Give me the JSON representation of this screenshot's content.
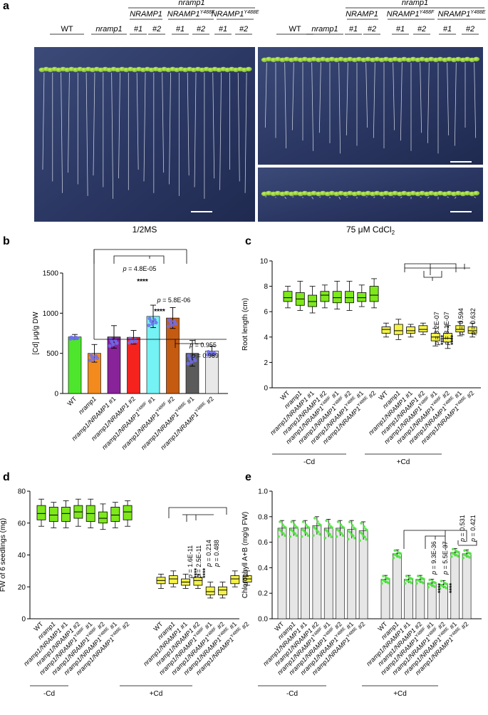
{
  "panels": {
    "a": {
      "letter": "a",
      "left_photo": {
        "header_group": "nramp1",
        "header_constructs": [
          "NRAMP1",
          "NRAMP1",
          "NRAMP1"
        ],
        "header_superscripts": [
          "",
          "Y488F",
          "Y488E"
        ],
        "genotypes": [
          "WT",
          "nramp1"
        ],
        "line_nums": [
          "#1",
          "#2",
          "#1",
          "#2",
          "#1",
          "#2"
        ],
        "condition": "1/2MS"
      },
      "right_photo": {
        "header_group": "nramp1",
        "header_constructs": [
          "NRAMP1",
          "NRAMP1",
          "NRAMP1"
        ],
        "header_superscripts": [
          "",
          "Y488F",
          "Y488E"
        ],
        "genotypes": [
          "WT",
          "nramp1"
        ],
        "line_nums": [
          "#1",
          "#2",
          "#1",
          "#2",
          "#1",
          "#2"
        ],
        "condition_prefix": "75 μM CdCl",
        "condition_sub": "2"
      }
    },
    "b": {
      "letter": "b"
    },
    "c": {
      "letter": "c",
      "group_labels": [
        "-Cd",
        "+Cd"
      ]
    },
    "d": {
      "letter": "d",
      "group_labels": [
        "-Cd",
        "+Cd"
      ]
    },
    "e": {
      "letter": "e",
      "group_labels": [
        "-Cd",
        "+Cd"
      ]
    }
  },
  "colors": {
    "wt": "#4ee62c",
    "nramp1": "#f28a1e",
    "c1": "#882399",
    "c2": "#f4231e",
    "y488f1": "#74f2f4",
    "y488f2": "#c55a11",
    "y488e1": "#5b5b5b",
    "y488e2": "#e8e8e8",
    "box_minus": "#7ee81c",
    "box_plus": "#f4f248",
    "bar_e": "#e6e6e6",
    "dots": "#6e6ef0",
    "dots_e": "#4de63c"
  },
  "chart_data": [
    {
      "panel": "b",
      "type": "bar",
      "ylabel": "[Cd] μg/g DW",
      "ylim": [
        0,
        1500
      ],
      "yticks": [
        0,
        500,
        1000,
        1500
      ],
      "categories": [
        {
          "base": "WT",
          "sup": "",
          "tail": ""
        },
        {
          "base": "nramp1",
          "sup": "",
          "tail": ""
        },
        {
          "base": "nramp1/NRAMP1 #1",
          "sup": "",
          "tail": ""
        },
        {
          "base": "nramp1/NRAMP1 #2",
          "sup": "",
          "tail": ""
        },
        {
          "base": "nramp1/NRAMP1",
          "sup": "Y488F",
          "tail": " #1"
        },
        {
          "base": "nramp1/NRAMP1",
          "sup": "Y488F",
          "tail": " #2"
        },
        {
          "base": "nramp1/NRAMP1",
          "sup": "Y488E",
          "tail": " #1"
        },
        {
          "base": "nramp1/NRAMP1",
          "sup": "Y488E",
          "tail": " #2"
        }
      ],
      "values": [
        705,
        500,
        705,
        700,
        960,
        940,
        500,
        530
      ],
      "errors": [
        30,
        110,
        140,
        85,
        140,
        130,
        160,
        60
      ],
      "annotations": [
        {
          "i": 4,
          "p": "p = 4.8E-05",
          "stars": "****"
        },
        {
          "i": 5,
          "p": "p = 5.8E-06",
          "stars": "****"
        },
        {
          "i": 6,
          "p": "p = 0.955",
          "stars": ""
        },
        {
          "i": 7,
          "p": "p = 0.989",
          "stars": ""
        }
      ]
    },
    {
      "panel": "c",
      "type": "box",
      "ylabel": "Root length (cm)",
      "ylim": [
        0,
        10
      ],
      "yticks": [
        0,
        2,
        4,
        6,
        8,
        10
      ],
      "categories_minus": [
        "WT",
        "nramp1",
        "nramp1/NRAMP1 #1",
        "nramp1/NRAMP1 #2",
        "nramp1/NRAMP1^Y488F #1",
        "nramp1/NRAMP1^Y488F #2",
        "nramp1/NRAMP1^Y488E #1",
        "nramp1/NRAMP1^Y488E #2"
      ],
      "boxes_minus": [
        {
          "min": 6.3,
          "q1": 6.8,
          "med": 7.1,
          "q3": 7.6,
          "max": 8.0
        },
        {
          "min": 6.1,
          "q1": 6.5,
          "med": 7.0,
          "q3": 7.5,
          "max": 8.4
        },
        {
          "min": 5.9,
          "q1": 6.4,
          "med": 6.8,
          "q3": 7.3,
          "max": 8.0
        },
        {
          "min": 6.3,
          "q1": 6.8,
          "med": 7.3,
          "q3": 7.6,
          "max": 8.1
        },
        {
          "min": 6.2,
          "q1": 6.7,
          "med": 7.1,
          "q3": 7.6,
          "max": 8.4
        },
        {
          "min": 6.1,
          "q1": 6.7,
          "med": 7.1,
          "q3": 7.6,
          "max": 8.4
        },
        {
          "min": 6.4,
          "q1": 6.8,
          "med": 7.1,
          "q3": 7.5,
          "max": 8.1
        },
        {
          "min": 6.3,
          "q1": 6.8,
          "med": 7.3,
          "q3": 8.0,
          "max": 8.6
        }
      ],
      "boxes_plus": [
        {
          "min": 4.0,
          "q1": 4.3,
          "med": 4.6,
          "q3": 4.8,
          "max": 5.1
        },
        {
          "min": 3.8,
          "q1": 4.2,
          "med": 4.5,
          "q3": 5.0,
          "max": 5.4
        },
        {
          "min": 4.0,
          "q1": 4.3,
          "med": 4.5,
          "q3": 4.8,
          "max": 5.0
        },
        {
          "min": 4.2,
          "q1": 4.4,
          "med": 4.6,
          "q3": 4.9,
          "max": 5.1
        },
        {
          "min": 3.3,
          "q1": 3.7,
          "med": 4.0,
          "q3": 4.3,
          "max": 4.7
        },
        {
          "min": 3.1,
          "q1": 3.6,
          "med": 3.9,
          "q3": 4.3,
          "max": 4.9
        },
        {
          "min": 4.1,
          "q1": 4.4,
          "med": 4.6,
          "q3": 4.9,
          "max": 5.2
        },
        {
          "min": 4.0,
          "q1": 4.3,
          "med": 4.5,
          "q3": 4.8,
          "max": 5.1
        }
      ],
      "annotations": [
        {
          "i": 4,
          "p": "p = 3.2E-07",
          "stars": "****"
        },
        {
          "i": 5,
          "p": "p = 8.1E-07",
          "stars": "****"
        },
        {
          "i": 6,
          "p": "p = 0.594",
          "stars": ""
        },
        {
          "i": 7,
          "p": "p = 0.632",
          "stars": ""
        }
      ]
    },
    {
      "panel": "d",
      "type": "box",
      "ylabel": "FW of 6 seedlings (mg)",
      "ylim": [
        0,
        80
      ],
      "yticks": [
        0,
        20,
        40,
        60,
        80
      ],
      "boxes_minus": [
        {
          "min": 58,
          "q1": 62,
          "med": 66,
          "q3": 71,
          "max": 75
        },
        {
          "min": 57,
          "q1": 61,
          "med": 65,
          "q3": 70,
          "max": 73
        },
        {
          "min": 57,
          "q1": 61,
          "med": 66,
          "q3": 70,
          "max": 74
        },
        {
          "min": 58,
          "q1": 63,
          "med": 67,
          "q3": 71,
          "max": 75
        },
        {
          "min": 57,
          "q1": 61,
          "med": 66,
          "q3": 71,
          "max": 75
        },
        {
          "min": 56,
          "q1": 60,
          "med": 63,
          "q3": 67,
          "max": 72
        },
        {
          "min": 57,
          "q1": 61,
          "med": 65,
          "q3": 70,
          "max": 73
        },
        {
          "min": 58,
          "q1": 62,
          "med": 67,
          "q3": 71,
          "max": 74
        }
      ],
      "boxes_plus": [
        {
          "min": 19,
          "q1": 22,
          "med": 24,
          "q3": 26,
          "max": 28
        },
        {
          "min": 20,
          "q1": 22,
          "med": 25,
          "q3": 27,
          "max": 30
        },
        {
          "min": 19,
          "q1": 21,
          "med": 23,
          "q3": 25,
          "max": 28
        },
        {
          "min": 19,
          "q1": 21,
          "med": 24,
          "q3": 26,
          "max": 28
        },
        {
          "min": 13,
          "q1": 15,
          "med": 17,
          "q3": 20,
          "max": 23
        },
        {
          "min": 13,
          "q1": 15,
          "med": 18,
          "q3": 20,
          "max": 23
        },
        {
          "min": 20,
          "q1": 22,
          "med": 25,
          "q3": 27,
          "max": 30
        },
        {
          "min": 21,
          "q1": 23,
          "med": 25,
          "q3": 27,
          "max": 30
        }
      ],
      "annotations": [
        {
          "i": 4,
          "p": "p = 1.6E-11",
          "stars": "****"
        },
        {
          "i": 5,
          "p": "p = 2.5E-11",
          "stars": "****"
        },
        {
          "i": 6,
          "p": "p = 0.214",
          "stars": ""
        },
        {
          "i": 7,
          "p": "p = 0.488",
          "stars": ""
        }
      ]
    },
    {
      "panel": "e",
      "type": "bar",
      "ylabel": "Chlorophyll A+B (mg/g FW)",
      "ylim": [
        0,
        1.0
      ],
      "yticks": [
        "0.0",
        "0.2",
        "0.4",
        "0.6",
        "0.8",
        "1.0"
      ],
      "values_minus": [
        0.71,
        0.71,
        0.71,
        0.73,
        0.71,
        0.71,
        0.7,
        0.69
      ],
      "errors_minus": [
        0.06,
        0.06,
        0.06,
        0.07,
        0.07,
        0.06,
        0.07,
        0.07
      ],
      "values_plus": [
        0.31,
        0.51,
        0.31,
        0.31,
        0.28,
        0.27,
        0.52,
        0.51
      ],
      "errors_plus": [
        0.03,
        0.03,
        0.03,
        0.03,
        0.03,
        0.03,
        0.03,
        0.03
      ],
      "annotations": [
        {
          "i": 4,
          "p": "p = 9.3E-36",
          "stars": "****"
        },
        {
          "i": 5,
          "p": "p = 5.5E-37",
          "stars": "****"
        },
        {
          "i": 6,
          "p": "p = 0.531",
          "stars": ""
        },
        {
          "i": 7,
          "p": "p = 0.421",
          "stars": ""
        }
      ]
    }
  ]
}
